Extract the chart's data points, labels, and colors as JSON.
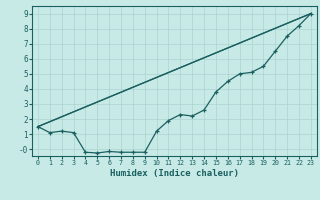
{
  "xlabel": "Humidex (Indice chaleur)",
  "background_color": "#c8eae6",
  "grid_color": "#aad4d0",
  "line_color": "#1a6060",
  "xlim": [
    -0.5,
    23.5
  ],
  "ylim": [
    -0.45,
    9.5
  ],
  "line1_x": [
    0,
    1,
    2,
    3,
    4,
    5,
    6,
    7,
    8,
    9,
    10,
    11,
    12,
    13,
    14,
    15,
    16,
    17,
    18,
    19,
    20,
    21,
    22,
    23
  ],
  "line1_y": [
    1.5,
    1.1,
    1.2,
    1.1,
    -0.2,
    -0.25,
    -0.15,
    -0.2,
    -0.2,
    -0.2,
    1.2,
    1.9,
    2.3,
    2.2,
    2.6,
    3.8,
    4.5,
    5.0,
    5.1,
    5.5,
    6.5,
    7.5,
    8.2,
    9.0
  ],
  "line2_x": [
    0,
    23
  ],
  "line2_y": [
    1.5,
    9.0
  ],
  "line3_x": [
    0,
    23
  ],
  "line3_y": [
    1.5,
    9.0
  ],
  "xticks": [
    0,
    1,
    2,
    3,
    4,
    5,
    6,
    7,
    8,
    9,
    10,
    11,
    12,
    13,
    14,
    15,
    16,
    17,
    18,
    19,
    20,
    21,
    22,
    23
  ],
  "yticks": [
    0,
    1,
    2,
    3,
    4,
    5,
    6,
    7,
    8,
    9
  ]
}
